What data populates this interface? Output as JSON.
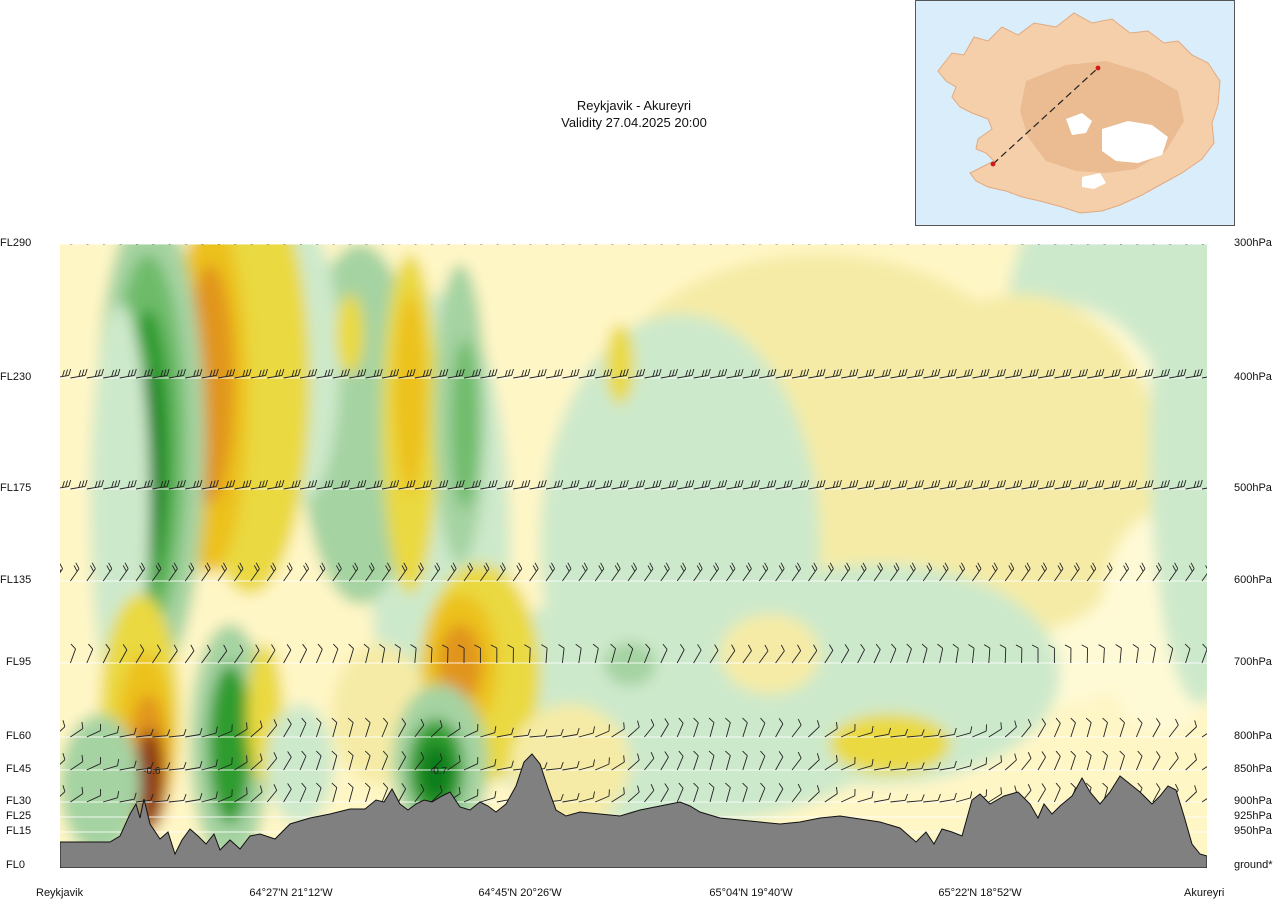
{
  "title": {
    "line1": "Reykjavik - Akureyri",
    "line2": "Validity 27.04.2025 20:00"
  },
  "colors": {
    "background": "#ffffff",
    "terrain": "#808080",
    "terrain_outline": "#111111",
    "inset_sea": "#d9eefa",
    "inset_land": "#f4c9a4",
    "route_line": "#222222",
    "route_points": "#d11a1a",
    "neg_scale": [
      "#eefbe8",
      "#cde9cb",
      "#a5d3a2",
      "#6ebc6b",
      "#2f9c2f",
      "#0f7d1a"
    ],
    "pos_scale": [
      "#fffad6",
      "#f5eba6",
      "#ead93f",
      "#ecc11a",
      "#e1951f",
      "#bc6a1f",
      "#8d3a14"
    ]
  },
  "icons": {
    "wind_barb": "wind-barb-icon",
    "route_marker": "location-dot-icon"
  },
  "chart_data": {
    "type": "heatmap",
    "title": "Reykjavik - Akureyri",
    "subtitle": "Validity 27.04.2025 20:00",
    "x_axis": {
      "labels": [
        "Reykjavik",
        "64°27'N 21°12'W",
        "64°45'N 20°26'W",
        "65°04'N 19°40'W",
        "65°22'N 18°52'W",
        "Akureyri"
      ],
      "range": [
        0,
        1
      ]
    },
    "y_axis_left": {
      "labels": [
        "FL290",
        "FL230",
        "FL175",
        "FL135",
        "FL95",
        "FL60",
        "FL45",
        "FL30",
        "FL25",
        "FL15",
        "FL0"
      ],
      "flight_levels": [
        290,
        230,
        175,
        135,
        95,
        60,
        45,
        30,
        25,
        15,
        0
      ]
    },
    "y_axis_right": {
      "labels": [
        "300hPa",
        "400hPa",
        "500hPa",
        "600hPa",
        "700hPa",
        "800hPa",
        "850hPa",
        "900hPa",
        "925hPa",
        "950hPa",
        "ground*"
      ]
    },
    "wind_barb_levels_hpa": [
      300,
      400,
      500,
      600,
      700,
      800,
      850,
      900
    ],
    "annotations": [
      {
        "text": "-0.6",
        "x": 0.08,
        "fl": 45
      },
      {
        "text": "-0.7",
        "x": 0.33,
        "fl": 45
      }
    ],
    "route": {
      "from": "Reykjavik",
      "to": "Akureyri"
    }
  }
}
